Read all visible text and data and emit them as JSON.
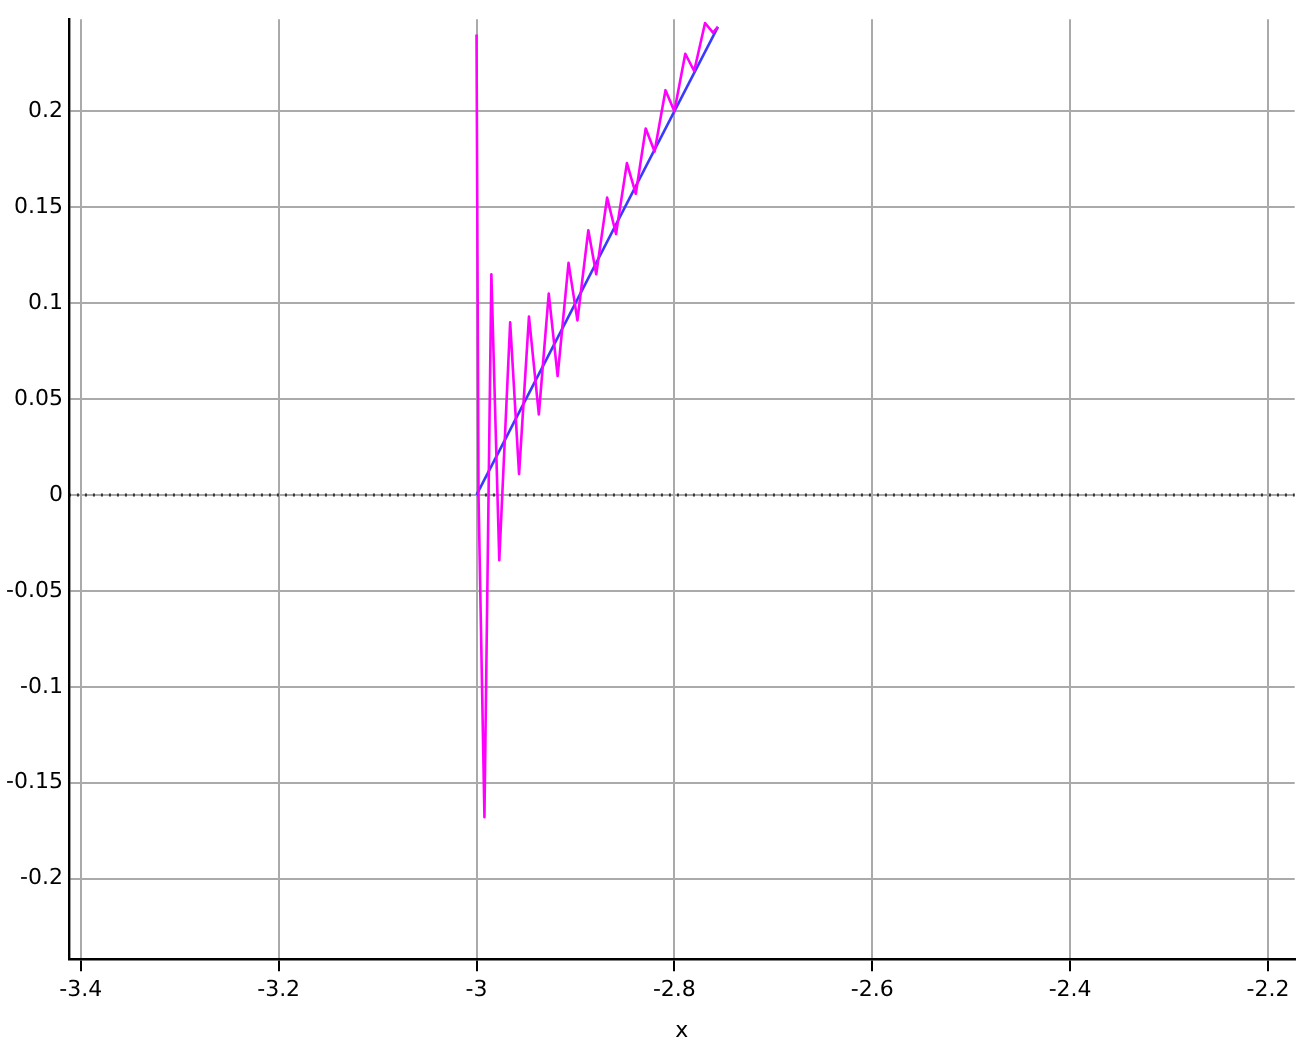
{
  "chart_data": {
    "type": "line",
    "xlabel": "x",
    "xlim": [
      -3.412,
      -2.173
    ],
    "xticks": [
      -3.4,
      -3.2,
      -3,
      -2.8,
      -2.6,
      -2.4,
      -2.2
    ],
    "ylim": [
      -0.242,
      0.248
    ],
    "yticks": [
      -0.2,
      -0.15,
      -0.1,
      -0.05,
      0,
      0.05,
      0.1,
      0.15,
      0.2
    ],
    "grid": true,
    "marker": "none",
    "line_style": "solid",
    "ref_lines": [
      {
        "axis": "y",
        "value": 0,
        "line_style": "dotted",
        "color": "#333333"
      }
    ],
    "series": [
      {
        "color": "#ff00ff",
        "x": [
          -3.0,
          -2.998,
          -2.992,
          -2.985,
          -2.977,
          -2.966,
          -2.957,
          -2.947,
          -2.937,
          -2.927,
          -2.918,
          -2.907,
          -2.898,
          -2.887,
          -2.879,
          -2.868,
          -2.859,
          -2.848,
          -2.839,
          -2.829,
          -2.82,
          -2.809,
          -2.8,
          -2.789,
          -2.78,
          -2.769,
          -2.761,
          -2.756
        ],
        "values": [
          0.24,
          0.0,
          -0.168,
          0.115,
          -0.034,
          0.09,
          0.011,
          0.093,
          0.042,
          0.105,
          0.062,
          0.121,
          0.091,
          0.138,
          0.115,
          0.155,
          0.136,
          0.173,
          0.157,
          0.191,
          0.179,
          0.211,
          0.2,
          0.23,
          0.221,
          0.246,
          0.241,
          0.244
        ]
      },
      {
        "color": "#3a3aff",
        "x": [
          -3.0,
          -2.756
        ],
        "values": [
          0.0,
          0.244
        ]
      }
    ]
  }
}
